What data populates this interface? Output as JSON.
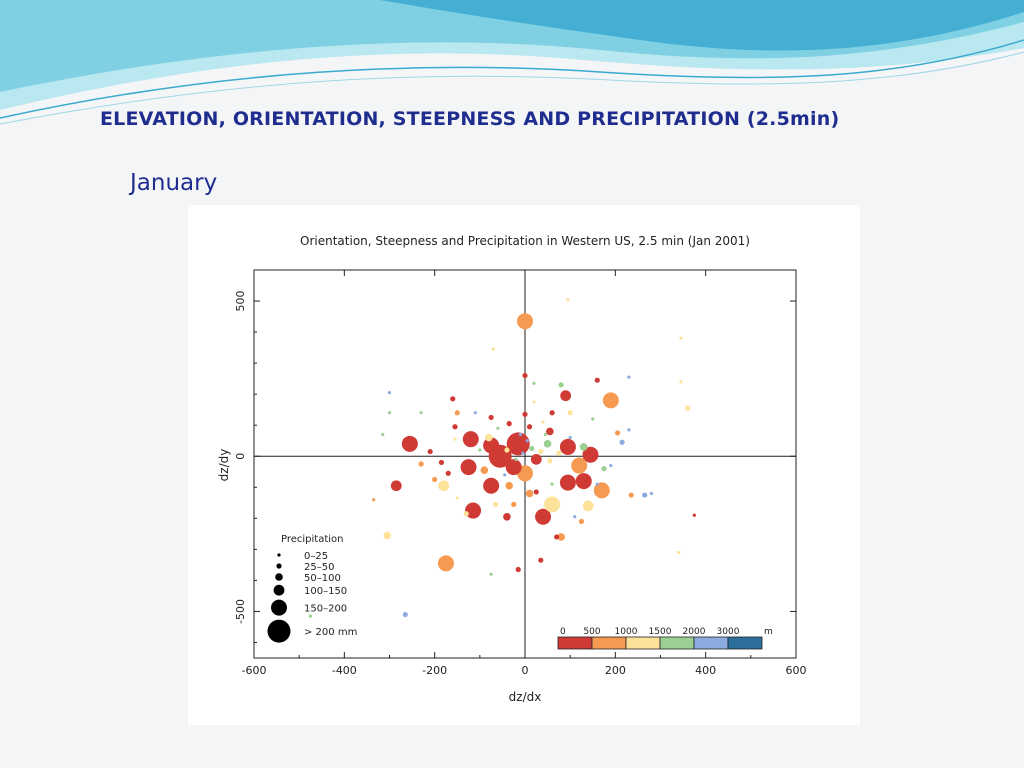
{
  "slide": {
    "title": "ELEVATION, ORIENTATION, STEEPNESS AND PRECIPITATION (2.5min)",
    "subtitle": "January"
  },
  "colors": {
    "title_text": "#1f2d8f",
    "wave_light": "#b9e8f0",
    "wave_mid": "#7fd0e3",
    "wave_dark": "#3aa9cf"
  },
  "chart_data": {
    "type": "scatter",
    "title": "Orientation, Steepness and Precipitation in Western US, 2.5 min (Jan 2001)",
    "xlabel": "dz/dx",
    "ylabel": "dz/dy",
    "xlim": [
      -600,
      600
    ],
    "ylim": [
      -650,
      600
    ],
    "x_ticks": [
      -600,
      -400,
      -200,
      0,
      200,
      400,
      600
    ],
    "x_tick_labels": [
      "-600",
      "-400",
      "-200",
      "0",
      "200",
      "400",
      "600"
    ],
    "y_ticks": [
      -500,
      0,
      500
    ],
    "y_tick_labels": [
      "-500",
      "0",
      "500"
    ],
    "grid": false,
    "zero_lines": true,
    "elevation_colorbar": {
      "label_unit": "m",
      "tick_labels": [
        "0",
        "500",
        "1000",
        "1500",
        "2000",
        "3000"
      ],
      "bin_colors": [
        "#d03a35",
        "#f59a50",
        "#fde29a",
        "#9ccf92",
        "#8cabe0",
        "#2b6f9a"
      ]
    },
    "size_legend": {
      "title": "Precipitation",
      "entries": [
        {
          "label": "0–25",
          "class": 1
        },
        {
          "label": "25–50",
          "class": 2
        },
        {
          "label": "50–100",
          "class": 3
        },
        {
          "label": "100–150",
          "class": 4
        },
        {
          "label": "150–200",
          "class": 5
        },
        {
          "label": "> 200 mm",
          "class": 6
        }
      ]
    },
    "points": [
      {
        "x": 0,
        "y": 435,
        "class": 5,
        "color": 1
      },
      {
        "x": -255,
        "y": 40,
        "class": 5,
        "color": 0
      },
      {
        "x": -285,
        "y": -95,
        "class": 4,
        "color": 0
      },
      {
        "x": -175,
        "y": -345,
        "class": 5,
        "color": 1
      },
      {
        "x": 190,
        "y": 180,
        "class": 5,
        "color": 1
      },
      {
        "x": 90,
        "y": 195,
        "class": 4,
        "color": 0
      },
      {
        "x": 0,
        "y": 260,
        "class": 2,
        "color": 0
      },
      {
        "x": 360,
        "y": 155,
        "class": 2,
        "color": 2
      },
      {
        "x": -120,
        "y": 55,
        "class": 5,
        "color": 0
      },
      {
        "x": -75,
        "y": 35,
        "class": 5,
        "color": 0
      },
      {
        "x": -55,
        "y": 0,
        "class": 6,
        "color": 0
      },
      {
        "x": -15,
        "y": 40,
        "class": 6,
        "color": 0
      },
      {
        "x": -125,
        "y": -35,
        "class": 5,
        "color": 0
      },
      {
        "x": -75,
        "y": -95,
        "class": 5,
        "color": 0
      },
      {
        "x": -115,
        "y": -175,
        "class": 5,
        "color": 0
      },
      {
        "x": 40,
        "y": -195,
        "class": 5,
        "color": 0
      },
      {
        "x": 95,
        "y": 30,
        "class": 5,
        "color": 0
      },
      {
        "x": 145,
        "y": 5,
        "class": 5,
        "color": 0
      },
      {
        "x": 130,
        "y": -80,
        "class": 5,
        "color": 0
      },
      {
        "x": 95,
        "y": -85,
        "class": 5,
        "color": 0
      },
      {
        "x": 170,
        "y": -110,
        "class": 5,
        "color": 1
      },
      {
        "x": 120,
        "y": -30,
        "class": 5,
        "color": 1
      },
      {
        "x": 60,
        "y": -155,
        "class": 5,
        "color": 2
      },
      {
        "x": 140,
        "y": -160,
        "class": 4,
        "color": 2
      },
      {
        "x": -180,
        "y": -95,
        "class": 4,
        "color": 2
      },
      {
        "x": 0,
        "y": -55,
        "class": 5,
        "color": 1
      },
      {
        "x": -25,
        "y": -35,
        "class": 5,
        "color": 0
      },
      {
        "x": 25,
        "y": -10,
        "class": 4,
        "color": 0
      },
      {
        "x": -40,
        "y": -195,
        "class": 3,
        "color": 0
      },
      {
        "x": 10,
        "y": -120,
        "class": 3,
        "color": 1
      },
      {
        "x": 80,
        "y": -260,
        "class": 3,
        "color": 1
      },
      {
        "x": 70,
        "y": -260,
        "class": 2,
        "color": 0
      },
      {
        "x": -15,
        "y": -365,
        "class": 2,
        "color": 0
      },
      {
        "x": 35,
        "y": -335,
        "class": 2,
        "color": 0
      },
      {
        "x": -305,
        "y": -255,
        "class": 3,
        "color": 2
      },
      {
        "x": -265,
        "y": -510,
        "class": 2,
        "color": 4
      },
      {
        "x": 55,
        "y": 80,
        "class": 3,
        "color": 0
      },
      {
        "x": 60,
        "y": 140,
        "class": 2,
        "color": 0
      },
      {
        "x": -155,
        "y": 95,
        "class": 2,
        "color": 0
      },
      {
        "x": -75,
        "y": 125,
        "class": 2,
        "color": 0
      },
      {
        "x": -35,
        "y": 105,
        "class": 2,
        "color": 0
      },
      {
        "x": 10,
        "y": 95,
        "class": 2,
        "color": 0
      },
      {
        "x": 0,
        "y": 135,
        "class": 2,
        "color": 0
      },
      {
        "x": 80,
        "y": 230,
        "class": 2,
        "color": 3
      },
      {
        "x": 20,
        "y": 235,
        "class": 1,
        "color": 3
      },
      {
        "x": 160,
        "y": 245,
        "class": 2,
        "color": 0
      },
      {
        "x": 100,
        "y": 140,
        "class": 2,
        "color": 2
      },
      {
        "x": 130,
        "y": 30,
        "class": 3,
        "color": 3
      },
      {
        "x": 50,
        "y": 40,
        "class": 3,
        "color": 3
      },
      {
        "x": 175,
        "y": -40,
        "class": 2,
        "color": 3
      },
      {
        "x": 205,
        "y": 75,
        "class": 2,
        "color": 1
      },
      {
        "x": 215,
        "y": 45,
        "class": 2,
        "color": 4
      },
      {
        "x": 230,
        "y": 85,
        "class": 1,
        "color": 4
      },
      {
        "x": 235,
        "y": -125,
        "class": 2,
        "color": 1
      },
      {
        "x": 265,
        "y": -125,
        "class": 2,
        "color": 4
      },
      {
        "x": 125,
        "y": -210,
        "class": 2,
        "color": 1
      },
      {
        "x": -160,
        "y": 185,
        "class": 2,
        "color": 0
      },
      {
        "x": -150,
        "y": 140,
        "class": 2,
        "color": 1
      },
      {
        "x": -185,
        "y": -20,
        "class": 2,
        "color": 0
      },
      {
        "x": -210,
        "y": 15,
        "class": 2,
        "color": 0
      },
      {
        "x": -230,
        "y": -25,
        "class": 2,
        "color": 1
      },
      {
        "x": -200,
        "y": -75,
        "class": 2,
        "color": 1
      },
      {
        "x": -170,
        "y": -55,
        "class": 2,
        "color": 0
      },
      {
        "x": -90,
        "y": -45,
        "class": 3,
        "color": 1
      },
      {
        "x": -35,
        "y": -95,
        "class": 3,
        "color": 1
      },
      {
        "x": -65,
        "y": -155,
        "class": 2,
        "color": 2
      },
      {
        "x": -25,
        "y": -155,
        "class": 2,
        "color": 1
      },
      {
        "x": 25,
        "y": -115,
        "class": 2,
        "color": 0
      },
      {
        "x": -150,
        "y": -135,
        "class": 1,
        "color": 2
      },
      {
        "x": -130,
        "y": -185,
        "class": 2,
        "color": 2
      },
      {
        "x": -80,
        "y": 60,
        "class": 3,
        "color": 2
      },
      {
        "x": -40,
        "y": 20,
        "class": 2,
        "color": 2
      },
      {
        "x": 15,
        "y": 25,
        "class": 2,
        "color": 3
      },
      {
        "x": 35,
        "y": 15,
        "class": 2,
        "color": 2
      },
      {
        "x": 55,
        "y": -15,
        "class": 2,
        "color": 2
      },
      {
        "x": 75,
        "y": 10,
        "class": 2,
        "color": 2
      },
      {
        "x": -20,
        "y": -10,
        "class": 1,
        "color": 3
      },
      {
        "x": 5,
        "y": 50,
        "class": 1,
        "color": 4
      },
      {
        "x": -5,
        "y": 10,
        "class": 1,
        "color": 4
      },
      {
        "x": 45,
        "y": 70,
        "class": 1,
        "color": 3
      },
      {
        "x": -60,
        "y": 90,
        "class": 1,
        "color": 3
      },
      {
        "x": -100,
        "y": 20,
        "class": 1,
        "color": 3
      },
      {
        "x": 100,
        "y": 60,
        "class": 1,
        "color": 4
      },
      {
        "x": -230,
        "y": 140,
        "class": 1,
        "color": 3
      },
      {
        "x": -300,
        "y": 140,
        "class": 1,
        "color": 3
      },
      {
        "x": -315,
        "y": 70,
        "class": 1,
        "color": 3
      },
      {
        "x": -155,
        "y": 55,
        "class": 1,
        "color": 2
      },
      {
        "x": 345,
        "y": 240,
        "class": 1,
        "color": 2
      },
      {
        "x": 340,
        "y": -310,
        "class": 1,
        "color": 2
      },
      {
        "x": 280,
        "y": -120,
        "class": 1,
        "color": 4
      },
      {
        "x": 375,
        "y": -190,
        "class": 1,
        "color": 0
      },
      {
        "x": 110,
        "y": -195,
        "class": 1,
        "color": 4
      },
      {
        "x": -475,
        "y": -515,
        "class": 1,
        "color": 3
      },
      {
        "x": -75,
        "y": -380,
        "class": 1,
        "color": 3
      },
      {
        "x": 95,
        "y": 505,
        "class": 1,
        "color": 2
      },
      {
        "x": -70,
        "y": 345,
        "class": 1,
        "color": 2
      },
      {
        "x": 345,
        "y": 380,
        "class": 1,
        "color": 2
      },
      {
        "x": -300,
        "y": 205,
        "class": 1,
        "color": 4
      },
      {
        "x": 230,
        "y": 255,
        "class": 1,
        "color": 4
      },
      {
        "x": -335,
        "y": -140,
        "class": 1,
        "color": 1
      },
      {
        "x": 160,
        "y": -90,
        "class": 1,
        "color": 4
      },
      {
        "x": 60,
        "y": -90,
        "class": 1,
        "color": 3
      },
      {
        "x": -10,
        "y": 70,
        "class": 1,
        "color": 4
      },
      {
        "x": 40,
        "y": 110,
        "class": 1,
        "color": 2
      },
      {
        "x": -110,
        "y": 140,
        "class": 1,
        "color": 4
      },
      {
        "x": 150,
        "y": 120,
        "class": 1,
        "color": 3
      },
      {
        "x": 190,
        "y": -30,
        "class": 1,
        "color": 4
      },
      {
        "x": -45,
        "y": -60,
        "class": 1,
        "color": 4
      },
      {
        "x": 20,
        "y": 175,
        "class": 1,
        "color": 2
      }
    ]
  }
}
